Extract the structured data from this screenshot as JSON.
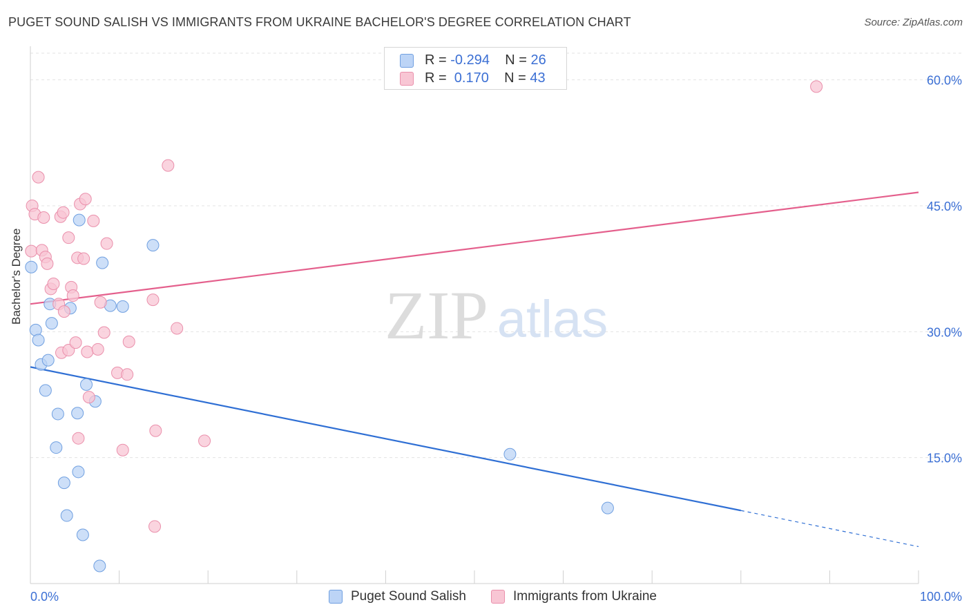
{
  "title": "PUGET SOUND SALISH VS IMMIGRANTS FROM UKRAINE BACHELOR'S DEGREE CORRELATION CHART",
  "source": "Source: ZipAtlas.com",
  "watermark": {
    "zip": "ZIP",
    "atlas": "atlas"
  },
  "legend_top": {
    "rows": [
      {
        "r_label": "R =",
        "r_value": "-0.294",
        "n_label": "N =",
        "n_value": "26"
      },
      {
        "r_label": "R =",
        "r_value": " 0.170",
        "n_label": "N =",
        "n_value": "43"
      }
    ]
  },
  "legend_bottom": {
    "items": [
      "Puget Sound Salish",
      "Immigrants from Ukraine"
    ]
  },
  "colors": {
    "blue_fill": "#bcd4f6",
    "blue_stroke": "#6f9fe0",
    "blue_line": "#2f6fd4",
    "pink_fill": "#f8c6d4",
    "pink_stroke": "#ea8fab",
    "pink_line": "#e45f8c",
    "axis_text": "#3b6fd4",
    "grid": "#e3e3e3"
  },
  "chart_data": {
    "type": "scatter",
    "title": "PUGET SOUND SALISH VS IMMIGRANTS FROM UKRAINE BACHELOR'S DEGREE CORRELATION CHART",
    "xlabel": "",
    "ylabel": "Bachelor's Degree",
    "xlim": [
      0,
      100
    ],
    "ylim": [
      0,
      64
    ],
    "x_tick_labels": [
      "0.0%",
      "100.0%"
    ],
    "y_ticks": [
      15,
      30,
      45,
      60
    ],
    "y_tick_labels": [
      "15.0%",
      "30.0%",
      "45.0%",
      "60.0%"
    ],
    "grid": true,
    "series": [
      {
        "name": "Puget Sound Salish",
        "color": "#bcd4f6",
        "points": [
          [
            0.1,
            37.7
          ],
          [
            0.6,
            30.2
          ],
          [
            0.9,
            29.0
          ],
          [
            1.2,
            26.1
          ],
          [
            1.7,
            23.0
          ],
          [
            2.0,
            26.6
          ],
          [
            2.2,
            33.3
          ],
          [
            2.4,
            31.0
          ],
          [
            2.9,
            16.2
          ],
          [
            3.1,
            20.2
          ],
          [
            3.8,
            12.0
          ],
          [
            4.1,
            8.1
          ],
          [
            4.5,
            32.8
          ],
          [
            5.3,
            20.3
          ],
          [
            5.4,
            13.3
          ],
          [
            5.5,
            43.3
          ],
          [
            5.9,
            5.8
          ],
          [
            6.3,
            23.7
          ],
          [
            7.3,
            21.7
          ],
          [
            7.8,
            2.1
          ],
          [
            8.1,
            38.2
          ],
          [
            9.0,
            33.1
          ],
          [
            10.4,
            33.0
          ],
          [
            13.8,
            40.3
          ],
          [
            54.0,
            15.4
          ],
          [
            65.0,
            9.0
          ]
        ],
        "trend": {
          "x": [
            0,
            80
          ],
          "y": [
            25.8,
            8.7
          ]
        },
        "trend_dashed": {
          "x": [
            80,
            100
          ],
          "y": [
            8.7,
            4.4
          ]
        }
      },
      {
        "name": "Immigrants from Ukraine",
        "color": "#f8c6d4",
        "points": [
          [
            0.1,
            39.6
          ],
          [
            0.2,
            45.0
          ],
          [
            0.5,
            44.0
          ],
          [
            0.9,
            48.4
          ],
          [
            1.3,
            39.7
          ],
          [
            1.5,
            43.6
          ],
          [
            1.7,
            38.9
          ],
          [
            1.9,
            38.1
          ],
          [
            2.3,
            35.1
          ],
          [
            2.6,
            35.7
          ],
          [
            3.2,
            33.3
          ],
          [
            3.4,
            43.7
          ],
          [
            3.5,
            27.5
          ],
          [
            3.7,
            44.2
          ],
          [
            3.8,
            32.4
          ],
          [
            4.3,
            27.8
          ],
          [
            4.3,
            41.2
          ],
          [
            4.6,
            35.3
          ],
          [
            4.8,
            34.3
          ],
          [
            5.1,
            28.7
          ],
          [
            5.3,
            38.8
          ],
          [
            5.4,
            17.3
          ],
          [
            5.6,
            45.2
          ],
          [
            6.0,
            38.7
          ],
          [
            6.2,
            45.8
          ],
          [
            6.4,
            27.6
          ],
          [
            6.6,
            22.2
          ],
          [
            7.1,
            43.2
          ],
          [
            7.6,
            27.9
          ],
          [
            7.9,
            33.5
          ],
          [
            8.3,
            29.9
          ],
          [
            8.6,
            40.5
          ],
          [
            9.8,
            25.1
          ],
          [
            10.4,
            15.9
          ],
          [
            10.9,
            24.9
          ],
          [
            11.1,
            28.8
          ],
          [
            13.8,
            33.8
          ],
          [
            14.1,
            18.2
          ],
          [
            14.0,
            6.8
          ],
          [
            15.5,
            49.8
          ],
          [
            16.5,
            30.4
          ],
          [
            19.6,
            17.0
          ],
          [
            88.5,
            59.2
          ]
        ],
        "trend": {
          "x": [
            0,
            100
          ],
          "y": [
            33.3,
            46.6
          ]
        }
      }
    ]
  }
}
